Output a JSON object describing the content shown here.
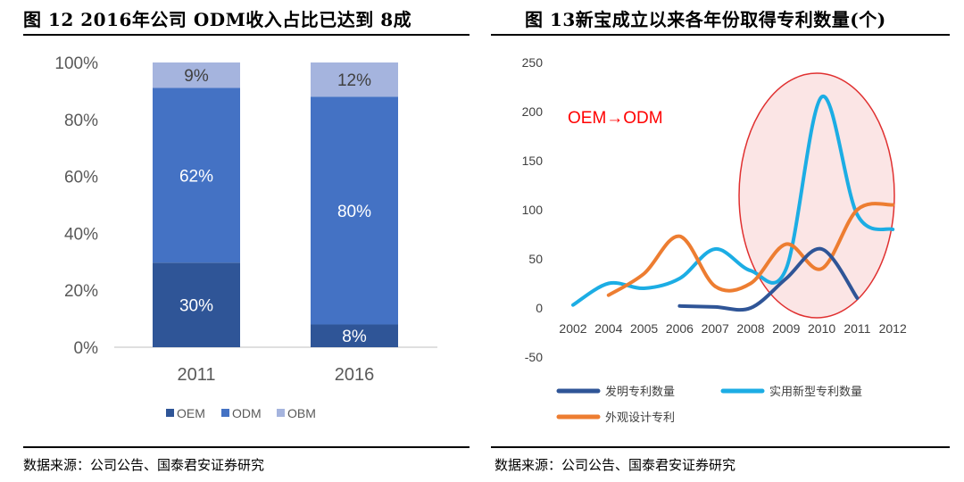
{
  "left": {
    "title": "图 12 2016年公司 ODM收入占比已达到 8成",
    "source": "数据来源：公司公告、国泰君安证券研究",
    "chart_data": {
      "type": "bar",
      "stacked": true,
      "categories": [
        "2011",
        "2016"
      ],
      "series": [
        {
          "name": "OEM",
          "values": [
            30,
            8
          ],
          "labels": [
            "30%",
            "8%"
          ],
          "color": "#2F5597"
        },
        {
          "name": "ODM",
          "values": [
            62,
            80
          ],
          "labels": [
            "62%",
            "80%"
          ],
          "color": "#4472C4"
        },
        {
          "name": "OBM",
          "values": [
            9,
            12
          ],
          "labels": [
            "9%",
            "12%"
          ],
          "color": "#A5B4DE"
        }
      ],
      "yticks": [
        "0%",
        "20%",
        "40%",
        "60%",
        "80%",
        "100%"
      ],
      "ylim": [
        0,
        100
      ],
      "legend_position": "bottom",
      "grid": false
    }
  },
  "right": {
    "title": "图 13新宝成立以来各年份取得专利数量(个)",
    "source": "数据来源：公司公告、国泰君安证券研究",
    "chart_data": {
      "type": "line",
      "x": [
        "2002",
        "2004",
        "2005",
        "2006",
        "2007",
        "2008",
        "2009",
        "2010",
        "2011",
        "2012"
      ],
      "series": [
        {
          "name": "发明专利数量",
          "color": "#2F5597",
          "values": [
            null,
            null,
            null,
            2,
            1,
            0,
            30,
            60,
            10,
            null
          ]
        },
        {
          "name": "实用新型专利数量",
          "color": "#1CADE4",
          "values": [
            3,
            25,
            20,
            30,
            60,
            38,
            40,
            215,
            95,
            80
          ]
        },
        {
          "name": "外观设计专利",
          "color": "#ED7D31",
          "values": [
            null,
            13,
            35,
            73,
            22,
            25,
            65,
            40,
            100,
            105
          ]
        }
      ],
      "yticks": [
        "-50",
        "0",
        "50",
        "100",
        "150",
        "200",
        "250"
      ],
      "ylim": [
        -50,
        250
      ],
      "annotation": "OEM→ODM",
      "annotation_color": "#FF0000",
      "highlight_color": "#FBE5E5",
      "legend_position": "bottom",
      "grid": false
    }
  }
}
